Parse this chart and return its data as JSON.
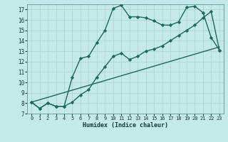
{
  "title": "",
  "xlabel": "Humidex (Indice chaleur)",
  "bg_color": "#c5e8e8",
  "grid_color": "#aed4d4",
  "line_color": "#1a6b5a",
  "xlim": [
    -0.5,
    23.5
  ],
  "ylim": [
    7,
    17.5
  ],
  "xticks": [
    0,
    1,
    2,
    3,
    4,
    5,
    6,
    7,
    8,
    9,
    10,
    11,
    12,
    13,
    14,
    15,
    16,
    17,
    18,
    19,
    20,
    21,
    22,
    23
  ],
  "yticks": [
    7,
    8,
    9,
    10,
    11,
    12,
    13,
    14,
    15,
    16,
    17
  ],
  "line1_x": [
    0,
    1,
    2,
    3,
    4,
    5,
    6,
    7,
    8,
    9,
    10,
    11,
    12,
    13,
    14,
    15,
    16,
    17,
    18,
    19,
    20,
    21,
    22,
    23
  ],
  "line1_y": [
    8.1,
    7.5,
    8.0,
    7.7,
    7.7,
    10.5,
    12.3,
    12.5,
    13.8,
    15.0,
    17.1,
    17.4,
    16.3,
    16.3,
    16.2,
    15.9,
    15.5,
    15.5,
    15.8,
    17.2,
    17.3,
    16.7,
    14.3,
    13.1
  ],
  "line2_x": [
    0,
    1,
    2,
    3,
    4,
    5,
    6,
    7,
    8,
    9,
    10,
    11,
    12,
    13,
    14,
    15,
    16,
    17,
    18,
    19,
    20,
    21,
    22,
    23
  ],
  "line2_y": [
    8.1,
    7.5,
    8.0,
    7.7,
    7.7,
    8.1,
    8.8,
    9.3,
    10.5,
    11.5,
    12.5,
    12.8,
    12.2,
    12.5,
    13.0,
    13.2,
    13.5,
    14.0,
    14.5,
    15.0,
    15.5,
    16.2,
    16.8,
    13.1
  ],
  "line3_x": [
    0,
    23
  ],
  "line3_y": [
    8.1,
    13.4
  ],
  "marker": "D",
  "markersize": 2.2,
  "linewidth": 1.0
}
